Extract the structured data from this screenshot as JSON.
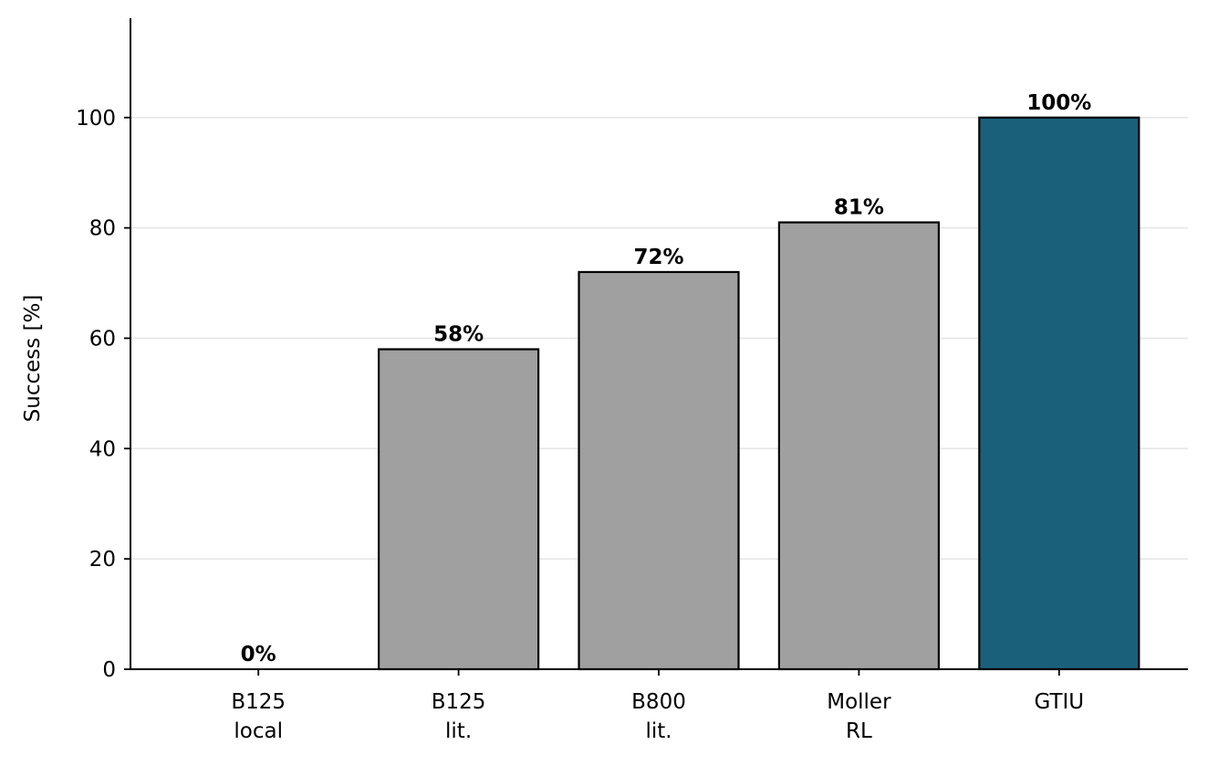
{
  "chart_data": {
    "type": "bar",
    "categories": [
      [
        "B125",
        "local"
      ],
      [
        "B125",
        "lit."
      ],
      [
        "B800",
        "lit."
      ],
      [
        "Moller",
        "RL"
      ],
      [
        "GTIU"
      ]
    ],
    "values": [
      0,
      58,
      72,
      81,
      100
    ],
    "value_labels": [
      "0%",
      "58%",
      "72%",
      "81%",
      "100%"
    ],
    "bar_colors": [
      "#a0a0a0",
      "#a0a0a0",
      "#a0a0a0",
      "#a0a0a0",
      "#1b607a"
    ],
    "edge_color": "#000000",
    "title": "",
    "xlabel": "",
    "ylabel": "Success [%]",
    "ylim": [
      0,
      118
    ],
    "yticks": [
      0,
      20,
      40,
      60,
      80,
      100
    ],
    "grid": "y-major-light",
    "legend": "none"
  }
}
